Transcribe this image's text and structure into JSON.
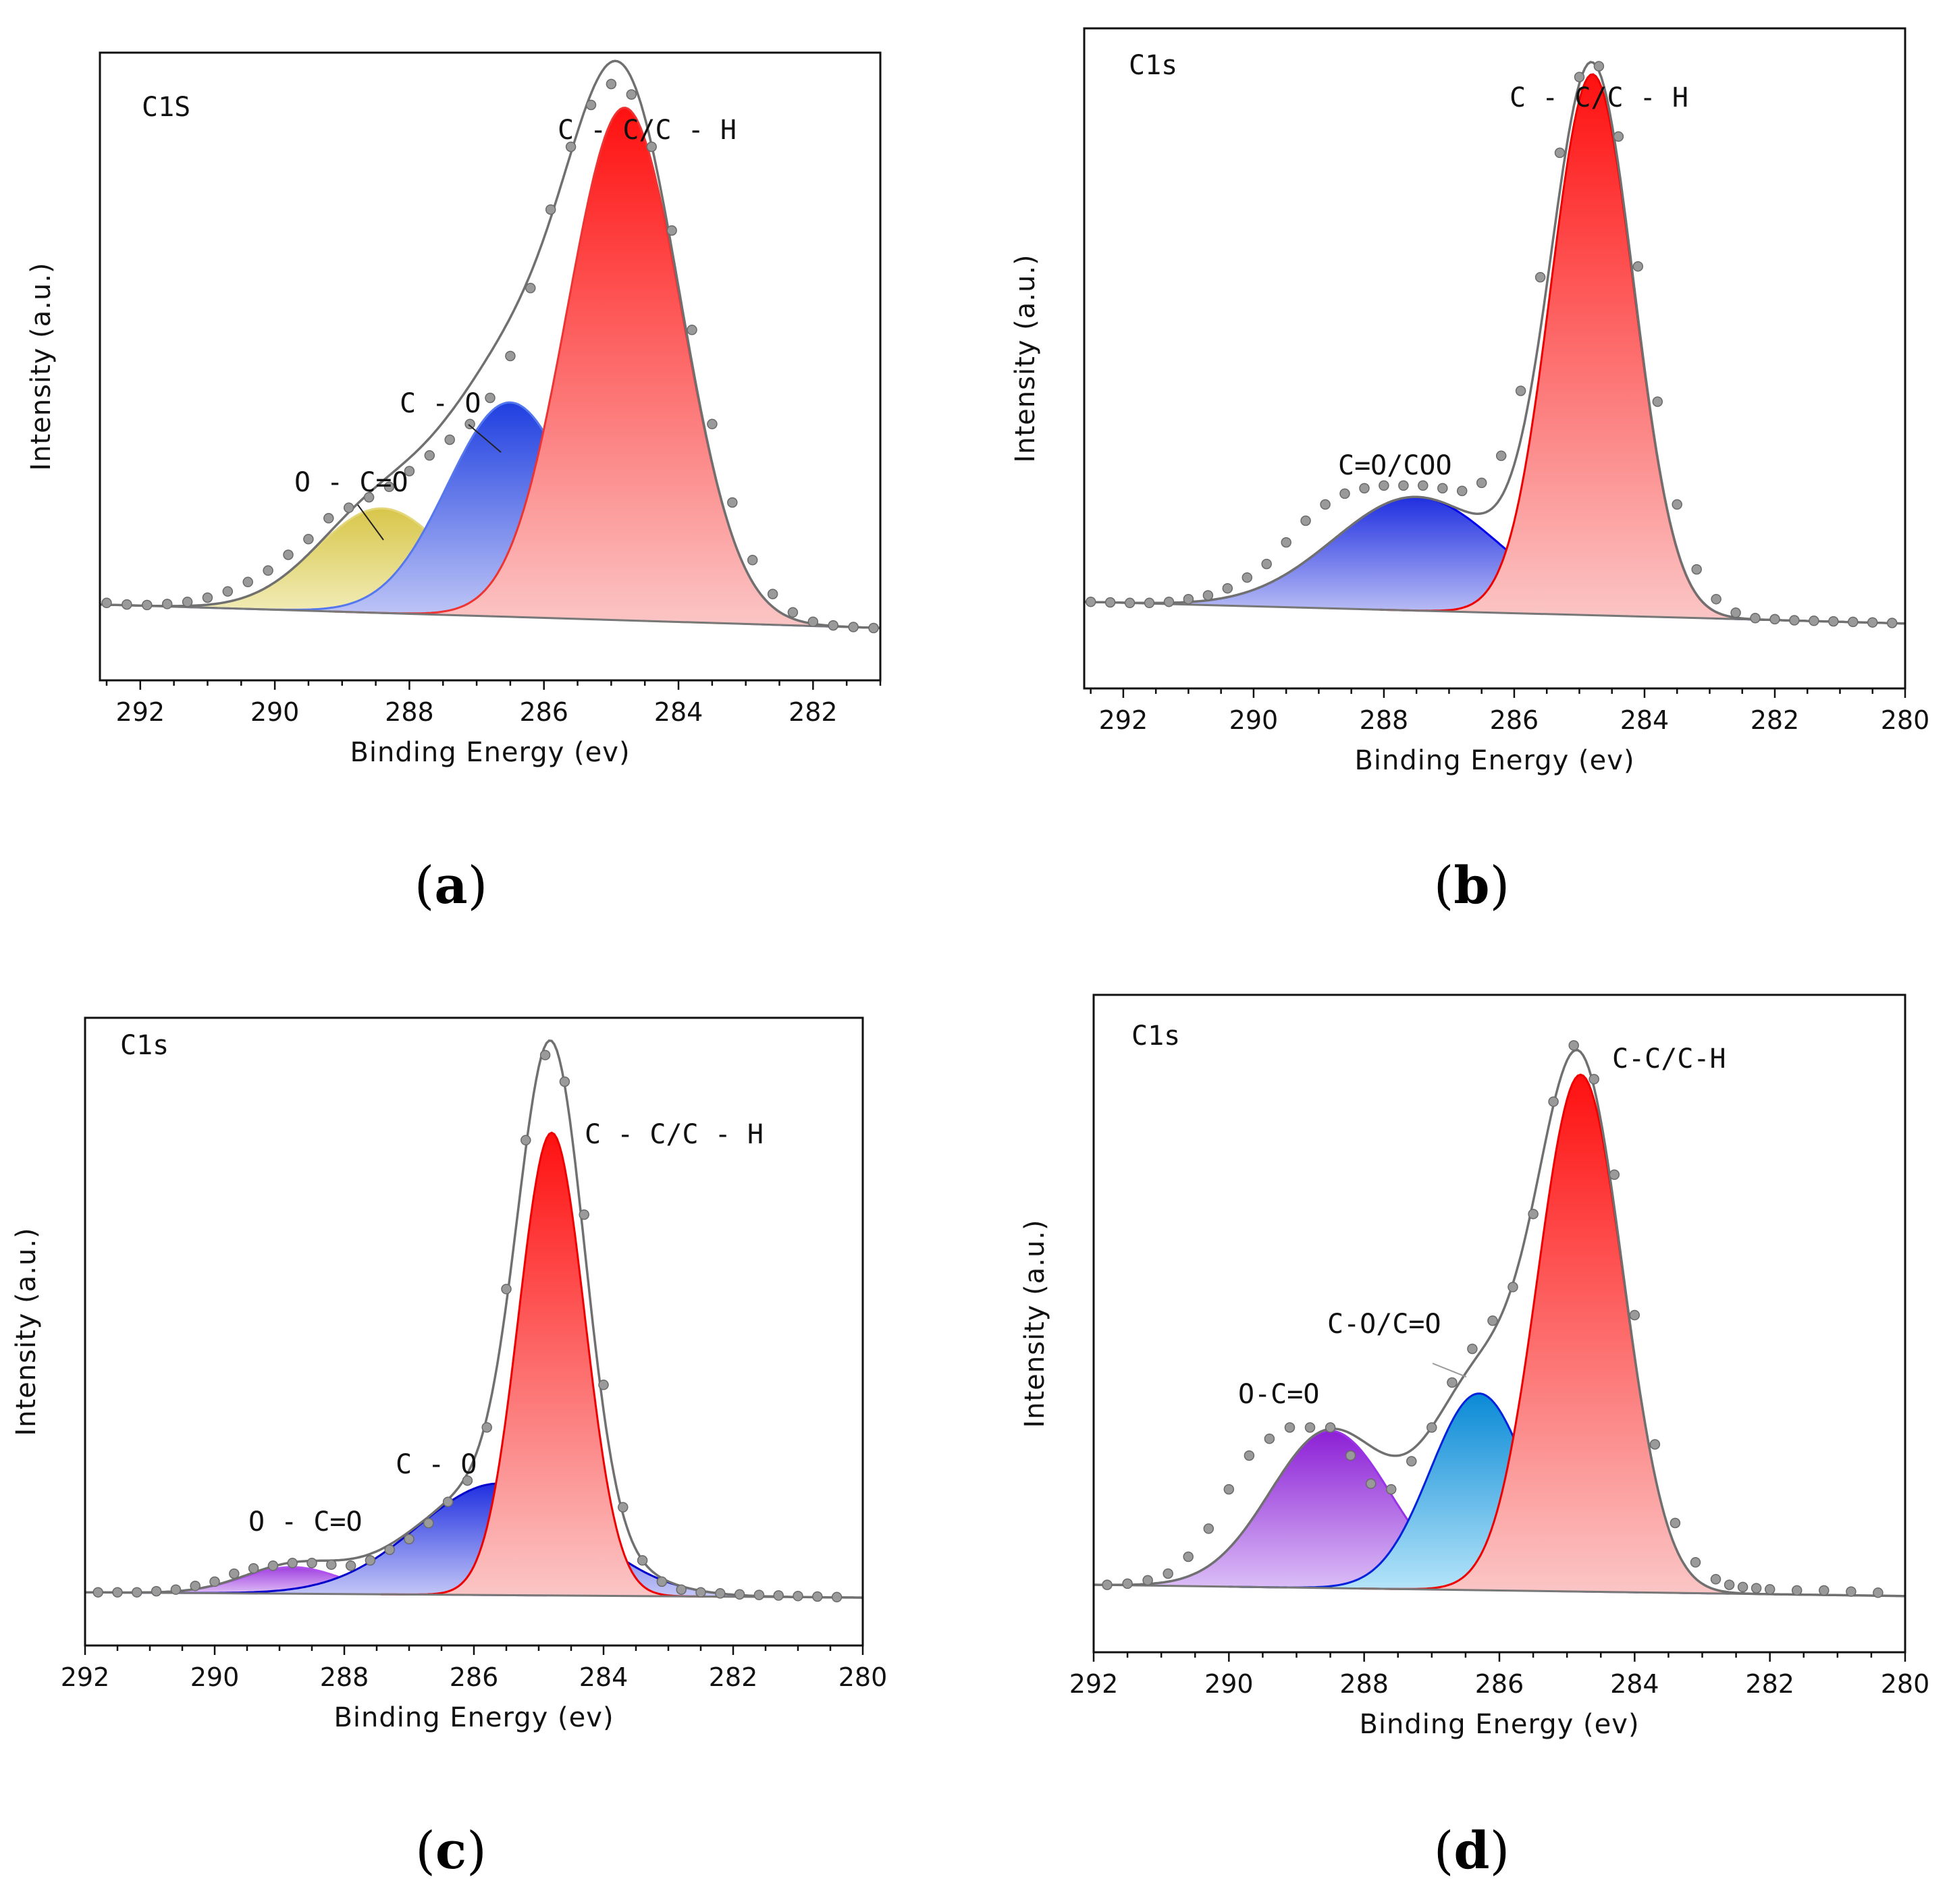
{
  "figure": {
    "caption_open": "(",
    "caption_close": ")"
  },
  "chart_data": [
    {
      "type": "line",
      "panel": "a",
      "caption": "a",
      "title": "C1S",
      "xlabel": "Binding Energy (ev)",
      "ylabel": "Intensity (a.u.)",
      "xlim": [
        292.6,
        281.0
      ],
      "ylim": [
        -0.1,
        1.1
      ],
      "xticks": [
        292,
        290,
        288,
        286,
        284,
        282
      ],
      "baseline": {
        "x": [
          292.6,
          281.0
        ],
        "y": [
          0.045,
          0.0
        ]
      },
      "components": [
        {
          "name": "O-C=O",
          "label": "O - C=O",
          "center": 288.4,
          "fwhm": 2.3,
          "height": 0.2,
          "fill_top": "#d8c64a",
          "fill_bottom": "#f4f0c2",
          "stroke": "#e4d77a"
        },
        {
          "name": "C-O",
          "label": "C - O",
          "center": 286.5,
          "fwhm": 2.2,
          "height": 0.41,
          "fill_top": "#1f3fe0",
          "fill_bottom": "#c6ccf7",
          "stroke": "#5577ee"
        },
        {
          "name": "C-C/C-H",
          "label": "C - C/C - H",
          "center": 284.8,
          "fwhm": 2.0,
          "height": 0.98,
          "fill_top": "#ff1010",
          "fill_bottom": "#fbc6c6",
          "stroke": "#ee3333"
        }
      ],
      "data_points": {
        "x": [
          292.5,
          292.2,
          291.9,
          291.6,
          291.3,
          291.0,
          290.7,
          290.4,
          290.1,
          289.8,
          289.5,
          289.2,
          288.9,
          288.6,
          288.3,
          288.0,
          287.7,
          287.4,
          287.1,
          286.8,
          286.5,
          286.2,
          285.9,
          285.6,
          285.3,
          285.0,
          284.7,
          284.4,
          284.1,
          283.8,
          283.5,
          283.2,
          282.9,
          282.6,
          282.3,
          282.0,
          281.7,
          281.4,
          281.1
        ],
        "y": [
          0.048,
          0.045,
          0.044,
          0.046,
          0.05,
          0.058,
          0.07,
          0.088,
          0.11,
          0.14,
          0.17,
          0.21,
          0.23,
          0.25,
          0.27,
          0.3,
          0.33,
          0.36,
          0.39,
          0.44,
          0.52,
          0.65,
          0.8,
          0.92,
          1.0,
          1.04,
          1.02,
          0.92,
          0.76,
          0.57,
          0.39,
          0.24,
          0.13,
          0.065,
          0.03,
          0.012,
          0.005,
          0.002,
          0.0
        ]
      }
    },
    {
      "type": "line",
      "panel": "b",
      "caption": "b",
      "title": "C1s",
      "xlabel": "Binding Energy (ev)",
      "ylabel": "Intensity (a.u.)",
      "xlim": [
        292.6,
        280.0
      ],
      "ylim": [
        -0.12,
        1.1
      ],
      "xticks": [
        292,
        290,
        288,
        286,
        284,
        282,
        280
      ],
      "baseline": {
        "x": [
          292.6,
          280.0
        ],
        "y": [
          0.04,
          0.0
        ]
      },
      "components": [
        {
          "name": "C=O/COO",
          "label": "C=O/COO",
          "center": 287.5,
          "fwhm": 3.0,
          "height": 0.21,
          "fill_top": "#1f2fe0",
          "fill_bottom": "#c6c9f7",
          "stroke": "#0000ee"
        },
        {
          "name": "C-C/C-H",
          "label": "C - C/C - H",
          "center": 284.8,
          "fwhm": 1.5,
          "height": 1.0,
          "fill_top": "#ff1010",
          "fill_bottom": "#fbc6c6",
          "stroke": "#ee0000"
        }
      ],
      "data_points": {
        "x": [
          292.5,
          292.2,
          291.9,
          291.6,
          291.3,
          291.0,
          290.7,
          290.4,
          290.1,
          289.8,
          289.5,
          289.2,
          288.9,
          288.6,
          288.3,
          288.0,
          287.7,
          287.4,
          287.1,
          286.8,
          286.5,
          286.2,
          285.9,
          285.6,
          285.3,
          285.0,
          284.7,
          284.4,
          284.1,
          283.8,
          283.5,
          283.2,
          282.9,
          282.6,
          282.3,
          282.0,
          281.7,
          281.4,
          281.1,
          280.8,
          280.5,
          280.2
        ],
        "y": [
          0.04,
          0.039,
          0.038,
          0.038,
          0.04,
          0.045,
          0.052,
          0.065,
          0.085,
          0.11,
          0.15,
          0.19,
          0.22,
          0.24,
          0.25,
          0.255,
          0.255,
          0.255,
          0.25,
          0.245,
          0.26,
          0.31,
          0.43,
          0.64,
          0.87,
          1.01,
          1.03,
          0.9,
          0.66,
          0.41,
          0.22,
          0.1,
          0.045,
          0.02,
          0.01,
          0.008,
          0.006,
          0.005,
          0.004,
          0.003,
          0.002,
          0.001
        ]
      }
    },
    {
      "type": "line",
      "panel": "c",
      "caption": "c",
      "title": "C1s",
      "xlabel": "Binding Energy (ev)",
      "ylabel": "Intensity (a.u.)",
      "xlim": [
        292.0,
        280.0
      ],
      "ylim": [
        -0.09,
        1.09
      ],
      "xticks": [
        292,
        290,
        288,
        286,
        284,
        282,
        280
      ],
      "baseline": {
        "x": [
          292.0,
          280.0
        ],
        "y": [
          0.01,
          0.0
        ]
      },
      "components": [
        {
          "name": "O-C=O",
          "label": "O - C=O",
          "center": 288.8,
          "fwhm": 1.8,
          "height": 0.05,
          "fill_top": "#a040e0",
          "fill_bottom": "#e2c6f7",
          "stroke": "#b050ee"
        },
        {
          "name": "C-O",
          "label": "C - O",
          "center": 285.6,
          "fwhm": 3.0,
          "height": 0.21,
          "fill_top": "#1f2fe0",
          "fill_bottom": "#c6c9f7",
          "stroke": "#0000cc"
        },
        {
          "name": "C-C/C-H",
          "label": "C - C/C - H",
          "center": 284.8,
          "fwhm": 1.2,
          "height": 0.87,
          "fill_top": "#ff1010",
          "fill_bottom": "#fbc6c6",
          "stroke": "#ee0000"
        }
      ],
      "data_points": {
        "x": [
          291.8,
          291.5,
          291.2,
          290.9,
          290.6,
          290.3,
          290.0,
          289.7,
          289.4,
          289.1,
          288.8,
          288.5,
          288.2,
          287.9,
          287.6,
          287.3,
          287.0,
          286.7,
          286.4,
          286.1,
          285.8,
          285.5,
          285.2,
          284.9,
          284.6,
          284.3,
          284.0,
          283.7,
          283.4,
          283.1,
          282.8,
          282.5,
          282.2,
          281.9,
          281.6,
          281.3,
          281.0,
          280.7,
          280.4
        ],
        "y": [
          0.01,
          0.01,
          0.01,
          0.012,
          0.015,
          0.022,
          0.03,
          0.045,
          0.055,
          0.06,
          0.065,
          0.065,
          0.062,
          0.06,
          0.07,
          0.09,
          0.11,
          0.14,
          0.18,
          0.22,
          0.32,
          0.58,
          0.86,
          1.02,
          0.97,
          0.72,
          0.4,
          0.17,
          0.07,
          0.03,
          0.015,
          0.01,
          0.008,
          0.006,
          0.005,
          0.004,
          0.003,
          0.002,
          0.001
        ]
      }
    },
    {
      "type": "line",
      "panel": "d",
      "caption": "d",
      "title": "C1s",
      "xlabel": "Binding Energy (ev)",
      "ylabel": "Intensity (a.u.)",
      "xlim": [
        292.0,
        280.0
      ],
      "ylim": [
        -0.1,
        1.07
      ],
      "xticks": [
        292,
        290,
        288,
        286,
        284,
        282,
        280
      ],
      "baseline": {
        "x": [
          292.0,
          280.0
        ],
        "y": [
          0.02,
          0.0
        ]
      },
      "components": [
        {
          "name": "O-C=O",
          "label": "O-C=O",
          "center": 288.5,
          "fwhm": 2.1,
          "height": 0.28,
          "fill_top": "#8c1fd6",
          "fill_bottom": "#ddc2f7",
          "stroke": "#9a33e6"
        },
        {
          "name": "C-O/C=O",
          "label": "C-O/C=O",
          "center": 286.3,
          "fwhm": 1.7,
          "height": 0.35,
          "fill_top": "#0a8ad6",
          "fill_bottom": "#b8e6fa",
          "stroke": "#0022dd"
        },
        {
          "name": "C-C/C-H",
          "label": "C-C/C-H",
          "center": 284.8,
          "fwhm": 1.5,
          "height": 0.92,
          "fill_top": "#ff1010",
          "fill_bottom": "#fbc6c6",
          "stroke": "#ee0000"
        }
      ],
      "data_points": {
        "x": [
          291.8,
          291.5,
          291.2,
          290.9,
          290.6,
          290.3,
          290.0,
          289.7,
          289.4,
          289.1,
          288.8,
          288.5,
          288.2,
          287.9,
          287.6,
          287.3,
          287.0,
          286.7,
          286.4,
          286.1,
          285.8,
          285.5,
          285.2,
          284.9,
          284.6,
          284.3,
          284.0,
          283.7,
          283.4,
          283.1,
          282.8,
          282.6,
          282.4,
          282.2,
          282.0,
          281.6,
          281.2,
          280.8,
          280.4
        ],
        "y": [
          0.02,
          0.022,
          0.028,
          0.04,
          0.07,
          0.12,
          0.19,
          0.25,
          0.28,
          0.3,
          0.3,
          0.3,
          0.25,
          0.2,
          0.19,
          0.24,
          0.3,
          0.38,
          0.44,
          0.49,
          0.55,
          0.68,
          0.88,
          0.98,
          0.92,
          0.75,
          0.5,
          0.27,
          0.13,
          0.06,
          0.03,
          0.02,
          0.016,
          0.014,
          0.012,
          0.01,
          0.01,
          0.008,
          0.006
        ]
      }
    }
  ]
}
